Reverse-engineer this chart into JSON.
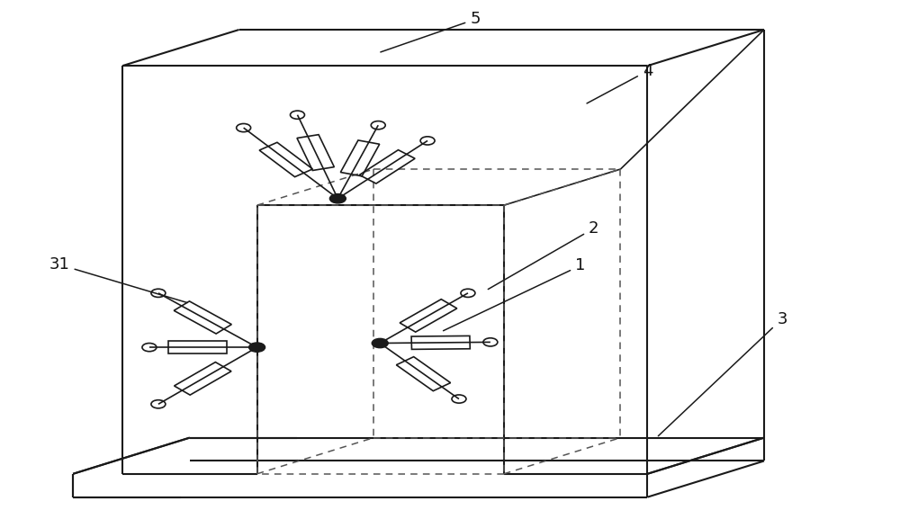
{
  "bg_color": "#ffffff",
  "line_color": "#1a1a1a",
  "dashed_color": "#555555",
  "label_color": "#111111",
  "fig_width": 10.0,
  "fig_height": 5.77,
  "label_fontsize": 13,
  "pdx": 0.13,
  "pdy": 0.07
}
